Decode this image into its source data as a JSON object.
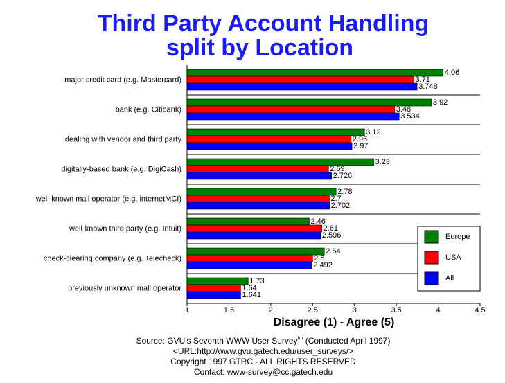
{
  "chart_data": {
    "type": "barh",
    "title": "Third Party Account Handling",
    "subtitle": "split by Location",
    "x_label": "Disagree (1) - Agree (5)",
    "categories": [
      "major credit card (e.g. Mastercard)",
      "bank (e.g. Citibank)",
      "dealing with vendor and third party",
      "digitally-based bank (e.g. DigiCash)",
      "well-known mall operator (e.g. internetMCI)",
      "well-known third party (e.g. Intuit)",
      "check-clearing company (e.g. Telecheck)",
      "previously unknown mall operator"
    ],
    "series": [
      {
        "name": "Europe",
        "color": "#008000",
        "values": [
          4.06,
          3.92,
          3.12,
          3.23,
          2.78,
          2.46,
          2.64,
          1.73
        ]
      },
      {
        "name": "USA",
        "color": "#ff0000",
        "values": [
          3.71,
          3.48,
          2.96,
          2.69,
          2.7,
          2.61,
          2.5,
          1.64
        ]
      },
      {
        "name": "All",
        "color": "#0000ff",
        "values": [
          3.748,
          3.534,
          2.97,
          2.726,
          2.702,
          2.596,
          2.492,
          1.641
        ]
      }
    ],
    "xlim": [
      1,
      4.5
    ],
    "xticks": [
      1,
      1.5,
      2,
      2.5,
      3,
      3.5,
      4,
      4.5
    ],
    "legend": "lower-right",
    "source": [
      "Source: GVU's Seventh WWW User Survey",
      "tm",
      " (Conducted April 1997)"
    ],
    "footer": [
      "<URL:http://www.gvu.gatech.edu/user_surveys/>",
      "Copyright 1997 GTRC - ALL RIGHTS RESERVED",
      "Contact: www-survey@cc.gatech.edu"
    ]
  }
}
